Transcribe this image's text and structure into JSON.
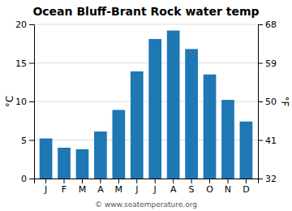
{
  "chart_data": {
    "type": "bar",
    "title": "Ocean Bluff-Brant Rock water temp",
    "categories": [
      "J",
      "F",
      "M",
      "A",
      "M",
      "J",
      "J",
      "A",
      "S",
      "O",
      "N",
      "D"
    ],
    "values": [
      5.2,
      4.0,
      3.8,
      6.1,
      8.9,
      13.9,
      18.1,
      19.2,
      16.8,
      13.5,
      10.2,
      7.4
    ],
    "ylim": [
      0,
      20
    ],
    "yticks": [
      0,
      5,
      10,
      15,
      20
    ],
    "y2lim": [
      32,
      68
    ],
    "y2ticks": [
      32,
      41,
      50,
      59,
      68
    ],
    "y_label": "°C",
    "y2_label": "°F",
    "annotations": [
      "© www.seatemperature.org"
    ],
    "grid": true
  }
}
